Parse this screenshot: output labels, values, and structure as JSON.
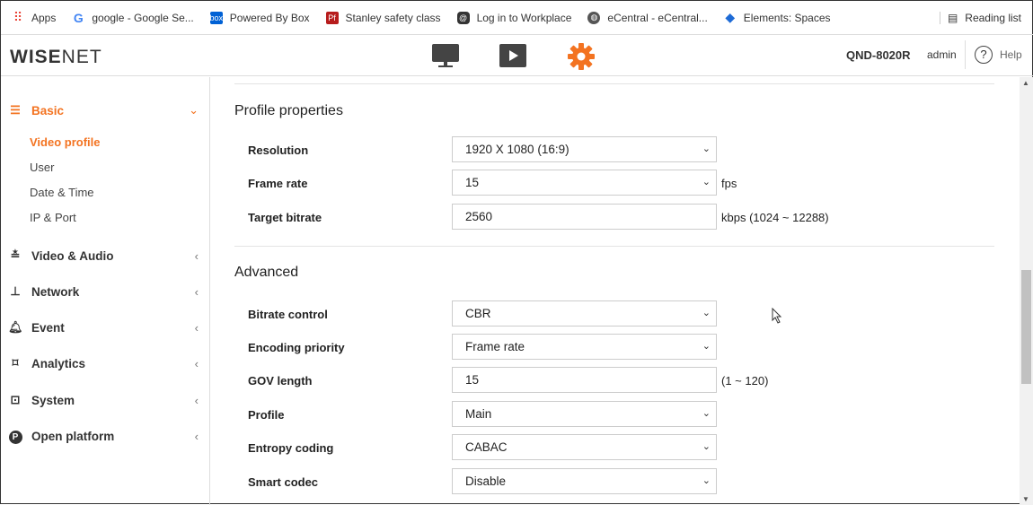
{
  "bookmarks": [
    {
      "label": "Apps",
      "icon": "apps-grid-icon",
      "color": "#e94235"
    },
    {
      "label": "google - Google Se...",
      "icon": "google-icon",
      "color": "#4285f4"
    },
    {
      "label": "Powered By Box",
      "icon": "box-icon",
      "color": "#0061d5"
    },
    {
      "label": "Stanley safety class",
      "icon": "pf-icon",
      "color": "#b71c1c"
    },
    {
      "label": "Log in to Workplace",
      "icon": "workplace-icon",
      "color": "#333333"
    },
    {
      "label": "eCentral - eCentral...",
      "icon": "globe-icon",
      "color": "#555555"
    },
    {
      "label": "Elements: Spaces",
      "icon": "elements-icon",
      "color": "#1e6bd6"
    }
  ],
  "reading_list": "Reading list",
  "header": {
    "logo_bold": "WISE",
    "logo_light": "NET",
    "model": "QND-8020R",
    "user": "admin",
    "help": "Help",
    "accent": "#f37321"
  },
  "sidebar": {
    "basic": "Basic",
    "sub": [
      "Video profile",
      "User",
      "Date & Time",
      "IP & Port"
    ],
    "cats": [
      {
        "label": "Video & Audio",
        "icon": "sliders-icon"
      },
      {
        "label": "Network",
        "icon": "network-icon"
      },
      {
        "label": "Event",
        "icon": "bell-icon"
      },
      {
        "label": "Analytics",
        "icon": "analytics-icon"
      },
      {
        "label": "System",
        "icon": "system-icon"
      },
      {
        "label": "Open platform",
        "icon": "open-platform-icon"
      }
    ]
  },
  "main": {
    "profile_title": "Profile properties",
    "advanced_title": "Advanced",
    "rows": [
      {
        "label": "Resolution",
        "value": "1920 X 1080 (16:9)",
        "type": "select",
        "unit": ""
      },
      {
        "label": "Frame rate",
        "value": "15",
        "type": "select",
        "unit": "fps"
      },
      {
        "label": "Target bitrate",
        "value": "2560",
        "type": "input",
        "unit": "kbps (1024 ~ 12288)"
      },
      {
        "label": "Bitrate control",
        "value": "CBR",
        "type": "select",
        "unit": ""
      },
      {
        "label": "Encoding priority",
        "value": "Frame rate",
        "type": "select",
        "unit": ""
      },
      {
        "label": "GOV length",
        "value": "15",
        "type": "input",
        "unit": "(1 ~ 120)"
      },
      {
        "label": "Profile",
        "value": "Main",
        "type": "select",
        "unit": ""
      },
      {
        "label": "Entropy coding",
        "value": "CABAC",
        "type": "select",
        "unit": ""
      },
      {
        "label": "Smart codec",
        "value": "Disable",
        "type": "select",
        "unit": ""
      }
    ]
  }
}
